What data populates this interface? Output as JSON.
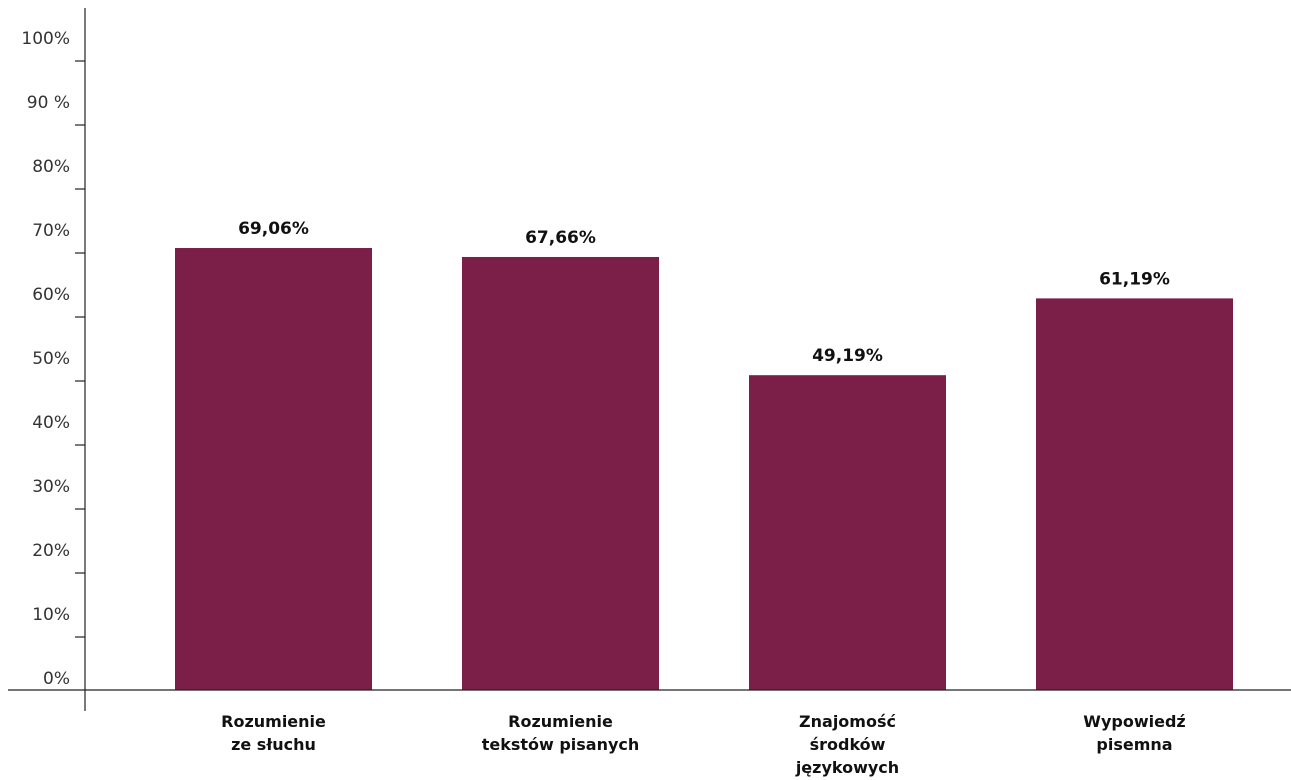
{
  "chart_data": {
    "type": "bar",
    "categories": [
      [
        "Rozumienie",
        "ze słuchu"
      ],
      [
        "Rozumienie",
        "tekstów pisanych"
      ],
      [
        "Znajomość",
        "środków",
        "językowych"
      ],
      [
        "Wypowiedź",
        "pisemna"
      ]
    ],
    "values": [
      69.06,
      67.66,
      49.19,
      61.19
    ],
    "value_labels": [
      "69,06%",
      "67,66%",
      "49,19%",
      "61,19%"
    ],
    "ylim": [
      0,
      100
    ],
    "y_ticks": [
      0,
      10,
      20,
      30,
      40,
      50,
      60,
      70,
      80,
      90,
      100
    ],
    "y_tick_labels": [
      "0%",
      "10%",
      "20%",
      "30%",
      "40%",
      "50%",
      "60%",
      "70%",
      "80%",
      "90 %",
      "100%"
    ],
    "grid": false,
    "legend": "none",
    "bar_color": "#7b1f48"
  }
}
